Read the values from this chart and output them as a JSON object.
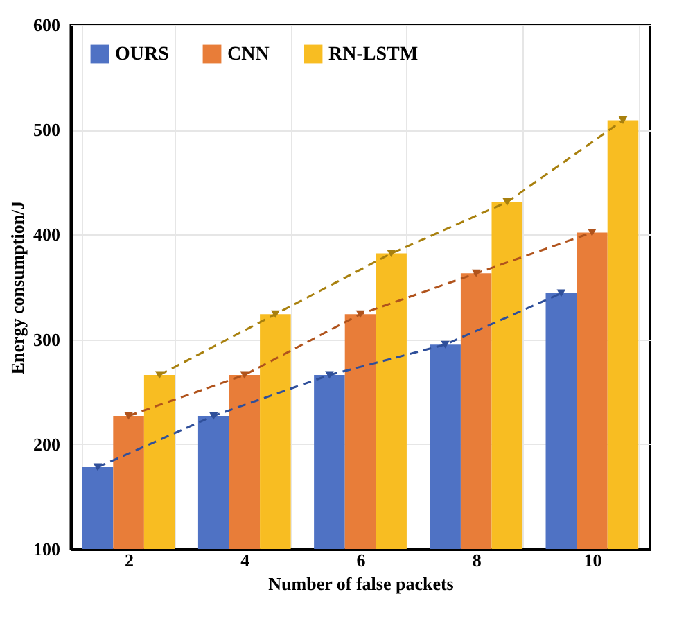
{
  "chart_data": {
    "type": "bar",
    "xlabel": "Number of false packets",
    "ylabel": "Energy consumption/J",
    "categories": [
      "2",
      "4",
      "6",
      "8",
      "10"
    ],
    "series": [
      {
        "name": "OURS",
        "color": "#4f72c4",
        "values": [
          178,
          227,
          266,
          295,
          344
        ]
      },
      {
        "name": "CNN",
        "color": "#e87d39",
        "values": [
          227,
          266,
          324,
          363,
          402
        ]
      },
      {
        "name": "RN-LSTM",
        "color": "#f8bd22",
        "values": [
          266,
          324,
          382,
          431,
          509
        ]
      },
      {
        "type": "line",
        "color": "#2f4f9a",
        "line_style": "dashed",
        "values": [
          178,
          227,
          266,
          295,
          344
        ]
      },
      {
        "type": "line",
        "color": "#b0531c",
        "line_style": "dashed",
        "values": [
          227,
          266,
          324,
          363,
          402
        ]
      },
      {
        "type": "line",
        "color": "#a8800e",
        "line_style": "dashed",
        "values": [
          266,
          324,
          382,
          431,
          509
        ]
      }
    ],
    "marker": "triangle",
    "ylim": [
      100,
      600
    ],
    "yticks": [
      100,
      200,
      300,
      400,
      500,
      600
    ],
    "grid": true,
    "legend": "top left"
  }
}
